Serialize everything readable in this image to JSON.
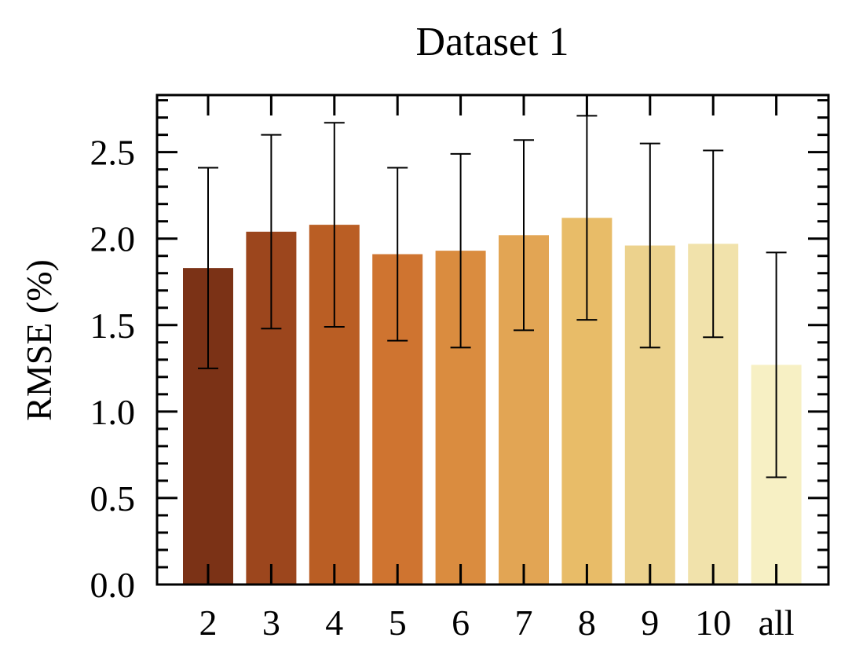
{
  "chart_data": {
    "type": "bar",
    "title": "Dataset 1",
    "xlabel": "",
    "ylabel": "RMSE (%)",
    "categories": [
      "2",
      "3",
      "4",
      "5",
      "6",
      "7",
      "8",
      "9",
      "10",
      "all"
    ],
    "values": [
      1.83,
      2.04,
      2.08,
      1.91,
      1.93,
      2.02,
      2.12,
      1.96,
      1.97,
      1.27
    ],
    "errors": [
      0.58,
      0.56,
      0.59,
      0.5,
      0.56,
      0.55,
      0.59,
      0.59,
      0.54,
      0.65
    ],
    "colors": [
      "#7b3216",
      "#9c461d",
      "#ba5e24",
      "#cf7430",
      "#da8c3f",
      "#e2a554",
      "#e8bc68",
      "#ecd28d",
      "#f1e2ab",
      "#f7f0c4"
    ],
    "ylim": [
      0,
      2.83
    ],
    "yticks": [
      "0.0",
      "0.5",
      "1.0",
      "1.5",
      "2.0",
      "2.5"
    ],
    "grid": false,
    "legend": false
  }
}
